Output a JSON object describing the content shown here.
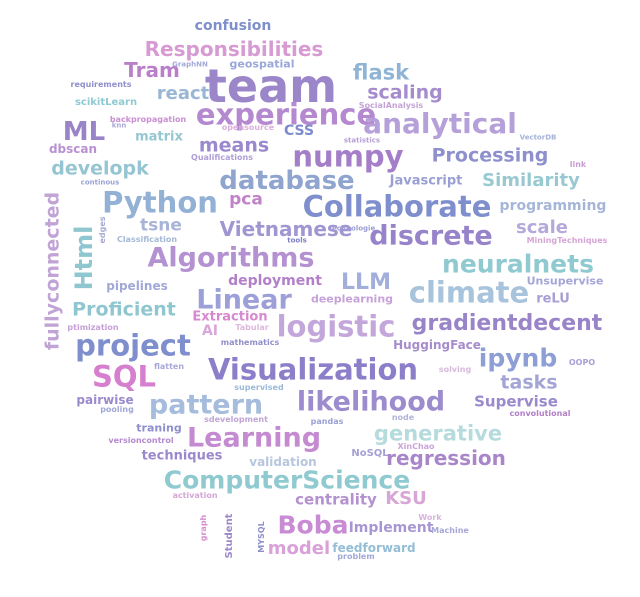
{
  "words": [
    {
      "text": "team",
      "color": "#9a86c8"
    },
    {
      "text": "Responsibilities",
      "color": "#d79ad2"
    },
    {
      "text": "confusion",
      "color": "#7f8fcc"
    },
    {
      "text": "Tram",
      "color": "#b980c9"
    },
    {
      "text": "GraphNN",
      "color": "#a5a9d8"
    },
    {
      "text": "geospatial",
      "color": "#9aa7d9"
    },
    {
      "text": "flask",
      "color": "#8fb4d6"
    },
    {
      "text": "requirements",
      "color": "#8f8fcb"
    },
    {
      "text": "react",
      "color": "#9ab6d4"
    },
    {
      "text": "scaling",
      "color": "#a58ccd"
    },
    {
      "text": "experience",
      "color": "#b589d0"
    },
    {
      "text": "scikitLearn",
      "color": "#8fc9d2"
    },
    {
      "text": "backpropagation",
      "color": "#c88fd1"
    },
    {
      "text": "SocialAnalysis",
      "color": "#c5a3d6"
    },
    {
      "text": "analytical",
      "color": "#b5a0da"
    },
    {
      "text": "ML",
      "color": "#9a84c8"
    },
    {
      "text": "knn",
      "color": "#a9a9d9"
    },
    {
      "text": "opensource",
      "color": "#d9b0dc"
    },
    {
      "text": "CSS",
      "color": "#7d8ccd"
    },
    {
      "text": "statistics",
      "color": "#b8a0d6"
    },
    {
      "text": "VectorDB",
      "color": "#a3b2d7"
    },
    {
      "text": "matrix",
      "color": "#94c7d1"
    },
    {
      "text": "means",
      "color": "#9a89cc"
    },
    {
      "text": "numpy",
      "color": "#a47ec8"
    },
    {
      "text": "Processing",
      "color": "#8e8fcd"
    },
    {
      "text": "dbscan",
      "color": "#b991d3"
    },
    {
      "text": "Qualifications",
      "color": "#b09ed6"
    },
    {
      "text": "link",
      "color": "#c89fd4"
    },
    {
      "text": "developk",
      "color": "#95c5d2"
    },
    {
      "text": "continous",
      "color": "#9aa3d5"
    },
    {
      "text": "database",
      "color": "#8fa5cf"
    },
    {
      "text": "Javascript",
      "color": "#9a9fd4"
    },
    {
      "text": "Similarity",
      "color": "#98c9d1"
    },
    {
      "text": "Python",
      "color": "#92b1d5"
    },
    {
      "text": "pca",
      "color": "#c182c9"
    },
    {
      "text": "Collaborate",
      "color": "#7f8fcd"
    },
    {
      "text": "programming",
      "color": "#a5b6d8"
    },
    {
      "text": "fullyconnected",
      "color": "#c1a3d5"
    },
    {
      "text": "Html",
      "color": "#8fc7d0"
    },
    {
      "text": "edges",
      "color": "#a9a9d4"
    },
    {
      "text": "tsne",
      "color": "#a8b3d8"
    },
    {
      "text": "technologie",
      "color": "#9b9dd5"
    },
    {
      "text": "scale",
      "color": "#b5a9d9"
    },
    {
      "text": "Classification",
      "color": "#a4b8d6"
    },
    {
      "text": "tools",
      "color": "#7d7fc4"
    },
    {
      "text": "Vietnamese",
      "color": "#a096d2"
    },
    {
      "text": "discrete",
      "color": "#9783c9"
    },
    {
      "text": "MiningTechniques",
      "color": "#d6a6d6"
    },
    {
      "text": "Algorithms",
      "color": "#b491d0"
    },
    {
      "text": "neuralnets",
      "color": "#8fcad0"
    },
    {
      "text": "Unsupervise",
      "color": "#a4a6d8"
    },
    {
      "text": "LLM",
      "color": "#a2aedb"
    },
    {
      "text": "climate",
      "color": "#a8c3dc"
    },
    {
      "text": "deployment",
      "color": "#b27fc8"
    },
    {
      "text": "pipelines",
      "color": "#a1a8d8"
    },
    {
      "text": "reLU",
      "color": "#a79fd6"
    },
    {
      "text": "Linear",
      "color": "#9d9fd8"
    },
    {
      "text": "deeplearning",
      "color": "#c7a2d8"
    },
    {
      "text": "Proficient",
      "color": "#8fc7d0"
    },
    {
      "text": "Extraction",
      "color": "#d789cf"
    },
    {
      "text": "logistic",
      "color": "#c4a7da"
    },
    {
      "text": "gradientdecent",
      "color": "#9a84c8"
    },
    {
      "text": "ptimization",
      "color": "#c7a0d8"
    },
    {
      "text": "AI",
      "color": "#d8a6d9"
    },
    {
      "text": "Tabular",
      "color": "#dcb8dc"
    },
    {
      "text": "project",
      "color": "#7f8fcd"
    },
    {
      "text": "mathematics",
      "color": "#8f8fcb"
    },
    {
      "text": "HuggingFace",
      "color": "#a58ccd"
    },
    {
      "text": "ipynb",
      "color": "#8e9fd6"
    },
    {
      "text": "SQL",
      "color": "#d77fcf"
    },
    {
      "text": "flatten",
      "color": "#a8a9d7"
    },
    {
      "text": "Visualization",
      "color": "#8c7ec8"
    },
    {
      "text": "solving",
      "color": "#d7b9dc"
    },
    {
      "text": "OOPO",
      "color": "#a79fd6"
    },
    {
      "text": "supervised",
      "color": "#9cb9d6"
    },
    {
      "text": "tasks",
      "color": "#a3a5d7"
    },
    {
      "text": "pairwise",
      "color": "#9a89cc"
    },
    {
      "text": "pattern",
      "color": "#a6bcdc"
    },
    {
      "text": "likelihood",
      "color": "#9d8ccd"
    },
    {
      "text": "Supervise",
      "color": "#9a89cc"
    },
    {
      "text": "pooling",
      "color": "#a2a9d6"
    },
    {
      "text": "sdevelopment",
      "color": "#c0a5d6"
    },
    {
      "text": "node",
      "color": "#b2b3d8"
    },
    {
      "text": "convolutional",
      "color": "#b27fc8"
    },
    {
      "text": "traning",
      "color": "#8e8fcd"
    },
    {
      "text": "pandas",
      "color": "#9a9fd4"
    },
    {
      "text": "versioncontrol",
      "color": "#b58ad0"
    },
    {
      "text": "Learning",
      "color": "#c48bd1"
    },
    {
      "text": "generative",
      "color": "#b5dbdd"
    },
    {
      "text": "XinChao",
      "color": "#c9a5d7"
    },
    {
      "text": "techniques",
      "color": "#9a89cc"
    },
    {
      "text": "validation",
      "color": "#b7c6dd"
    },
    {
      "text": "NoSQL",
      "color": "#a49fd4"
    },
    {
      "text": "regression",
      "color": "#a985c9"
    },
    {
      "text": "ComputerScience",
      "color": "#8fcad0"
    },
    {
      "text": "activation",
      "color": "#d6a6d6"
    },
    {
      "text": "centrality",
      "color": "#b491d0"
    },
    {
      "text": "KSU",
      "color": "#d7a6d7"
    },
    {
      "text": "graph",
      "color": "#d88fcf"
    },
    {
      "text": "Student",
      "color": "#9f87cc"
    },
    {
      "text": "MYSQL",
      "color": "#8c8fcc"
    },
    {
      "text": "Boba",
      "color": "#c98bd3"
    },
    {
      "text": "Implement",
      "color": "#a896d2"
    },
    {
      "text": "Work",
      "color": "#d7b4dc"
    },
    {
      "text": "Machine",
      "color": "#a6a6d6"
    },
    {
      "text": "model",
      "color": "#d8a2d8"
    },
    {
      "text": "feedforward",
      "color": "#94bdd6"
    },
    {
      "text": "problem",
      "color": "#a2a9d6"
    }
  ]
}
